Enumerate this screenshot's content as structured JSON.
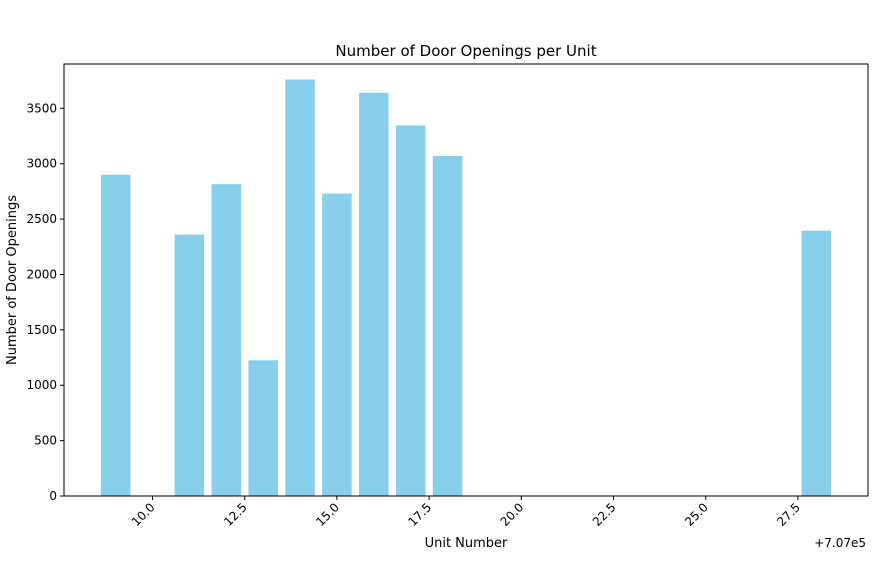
{
  "chart_data": {
    "type": "bar",
    "title": "Number of Door Openings per Unit",
    "xlabel": "Unit Number",
    "ylabel": "Number of Door Openings",
    "x_offset_label": "+7.07e5",
    "x_offset": 707000,
    "x": [
      707009,
      707011,
      707012,
      707013,
      707014,
      707015,
      707016,
      707017,
      707018,
      707028
    ],
    "values": [
      2900,
      2360,
      2815,
      1225,
      3760,
      2730,
      3640,
      3345,
      3070,
      2395
    ],
    "bar_width": 0.8,
    "bar_color": "#87CEEB",
    "xlim": [
      707007.6,
      707029.4
    ],
    "ylim": [
      0,
      3900
    ],
    "xticks": [
      707010,
      707012.5,
      707015,
      707017.5,
      707020,
      707022.5,
      707025,
      707027.5
    ],
    "xtick_labels": [
      "10.0",
      "12.5",
      "15.0",
      "17.5",
      "20.0",
      "22.5",
      "25.0",
      "27.5"
    ],
    "yticks": [
      0,
      500,
      1000,
      1500,
      2000,
      2500,
      3000,
      3500
    ],
    "ytick_labels": [
      "0",
      "500",
      "1000",
      "1500",
      "2000",
      "2500",
      "3000",
      "3500"
    ],
    "xtick_rotation": 45,
    "grid": false,
    "legend": false
  }
}
